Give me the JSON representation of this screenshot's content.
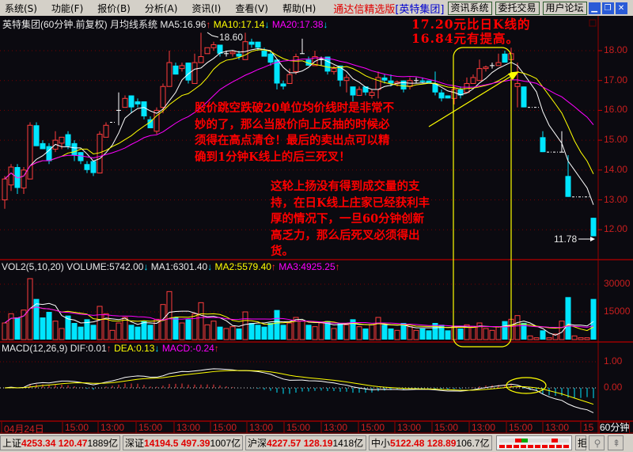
{
  "menu": {
    "items": [
      "系统(S)",
      "功能(F)",
      "报价(B)",
      "分析(A)",
      "资讯(I)",
      "查看(V)",
      "帮助(H)"
    ],
    "brand": "通达信精选版",
    "stock": "[英特集团]",
    "buttons": [
      "资讯系统",
      "委托交易",
      "用户论坛"
    ],
    "window_controls": [
      "minimize-icon",
      "restore-icon",
      "close-icon"
    ]
  },
  "header": {
    "title": "英特集团(60分钟.前复权) 月均线系统",
    "ma5": "MA5:16.96",
    "ma10": "MA10:17.14",
    "ma20": "MA20:17.38"
  },
  "vol_header": {
    "name": "VOL2(5,10,20)",
    "volume": "VOLUME:5742.00",
    "ma1": "MA1:6301.40",
    "ma2": "MA2:5579.40",
    "ma3": "MA3:4925.25"
  },
  "macd_header": {
    "name": "MACD(12,26,9)",
    "dif": "DIF:0.01",
    "dea": "DEA:0.13",
    "macd": "MACD:-0.24"
  },
  "annotations": {
    "top_right": [
      "17.20元比日K线的",
      "16.84元有提高。"
    ],
    "note1": [
      "股价跳空跌破20单位均价线时是非常不",
      "妙的了，那么当股价向上反抽的时候必",
      "须得在高点清仓！最后的卖出点可以精",
      "确到1分钟K线上的后三死叉！"
    ],
    "note2": [
      "这轮上扬没有得到成交量的支",
      "持，在日K线上庄家已经获利丰",
      "厚的情况下，一旦60分钟创新",
      "高乏力，那么后死叉必须得出",
      "货。"
    ],
    "high_label": "18.60",
    "low_label": "11.78"
  },
  "axis": {
    "price_ticks": [
      "18.00",
      "17.00",
      "16.00",
      "15.00",
      "14.00",
      "13.00",
      "12.00"
    ],
    "vol_ticks": [
      "30000",
      "15000"
    ],
    "macd_ticks": [
      "1.00",
      "0.00"
    ],
    "period": "60分钟",
    "x_labels": [
      "04月24日",
      "15:00",
      "13:00",
      "15:00",
      "13:00",
      "15:00",
      "13:00",
      "15:00",
      "13:00",
      "15:00",
      "13:00",
      "15:00",
      "13:00",
      "15:00",
      "13:00",
      "15"
    ]
  },
  "status": {
    "markets": [
      {
        "name": "上证",
        "index": "4253.34",
        "change": "120.47",
        "amount": "1889亿"
      },
      {
        "name": "深证",
        "index": "14194.5",
        "change": "497.39",
        "amount": "1007亿"
      },
      {
        "name": "沪深",
        "index": "4227.57",
        "change": "128.19",
        "amount": "1418亿"
      },
      {
        "name": "中小",
        "index": "5122.48",
        "change": "128.89",
        "amount": "106.7亿"
      }
    ],
    "reject": "拒"
  },
  "colors": {
    "up": "#ff3c3c",
    "down": "#00e5ff",
    "ma5": "#ffffff",
    "ma10": "#ffff00",
    "ma20": "#ff00ff",
    "grid": "#7a0000",
    "annotation": "#ff0000",
    "highlight": "#ffff00"
  },
  "chart_data": {
    "type": "candlestick",
    "period": "60分钟",
    "price_ylim": [
      11.5,
      18.9
    ],
    "candles_ohlc": [
      [
        13.0,
        13.8,
        12.7,
        13.7
      ],
      [
        13.5,
        14.2,
        13.3,
        14.1
      ],
      [
        14.1,
        14.2,
        13.2,
        13.4
      ],
      [
        13.4,
        14.1,
        13.2,
        14.0
      ],
      [
        13.7,
        15.6,
        13.7,
        15.5
      ],
      [
        15.5,
        15.6,
        14.8,
        14.8
      ],
      [
        14.9,
        15.0,
        14.7,
        14.7
      ],
      [
        14.8,
        14.9,
        14.2,
        14.3
      ],
      [
        14.7,
        15.3,
        14.6,
        15.0
      ],
      [
        14.9,
        15.1,
        14.7,
        15.1
      ],
      [
        15.2,
        15.3,
        14.7,
        14.8
      ],
      [
        14.9,
        15.0,
        14.3,
        14.5
      ],
      [
        14.6,
        14.6,
        14.2,
        14.3
      ],
      [
        14.2,
        14.3,
        13.9,
        14.0
      ],
      [
        14.3,
        14.3,
        13.8,
        13.9
      ],
      [
        13.9,
        15.3,
        13.9,
        15.2
      ],
      [
        15.1,
        15.6,
        15.1,
        15.5
      ],
      [
        15.6,
        15.6,
        15.6,
        15.6
      ],
      [
        16.0,
        16.6,
        15.5,
        16.0
      ],
      [
        16.1,
        16.5,
        16.1,
        16.4
      ],
      [
        16.5,
        16.5,
        15.9,
        16.1
      ],
      [
        16.3,
        16.4,
        16.1,
        16.2
      ],
      [
        16.3,
        16.3,
        15.7,
        15.8
      ],
      [
        15.7,
        15.8,
        15.4,
        15.4
      ],
      [
        15.3,
        16.1,
        15.2,
        16.0
      ],
      [
        16.1,
        16.9,
        15.9,
        16.8
      ],
      [
        16.8,
        18.0,
        16.8,
        17.6
      ],
      [
        17.5,
        17.6,
        17.2,
        17.2
      ],
      [
        17.4,
        17.6,
        17.3,
        17.5
      ],
      [
        17.6,
        17.6,
        16.9,
        17.0
      ],
      [
        16.9,
        17.9,
        16.9,
        17.6
      ],
      [
        17.6,
        18.6,
        17.6,
        17.8
      ],
      [
        17.9,
        18.1,
        17.9,
        18.1
      ],
      [
        18.1,
        18.3,
        18.0,
        18.2
      ],
      [
        18.2,
        18.2,
        17.8,
        17.9
      ],
      [
        17.9,
        18.0,
        17.8,
        17.9
      ],
      [
        17.9,
        18.0,
        17.8,
        17.95
      ],
      [
        17.9,
        18.0,
        17.7,
        17.8
      ],
      [
        17.7,
        18.6,
        17.7,
        18.3
      ],
      [
        18.3,
        18.4,
        18.1,
        18.2
      ],
      [
        18.3,
        18.3,
        18.0,
        18.1
      ],
      [
        18.0,
        18.1,
        17.8,
        17.8
      ],
      [
        17.9,
        18.0,
        17.5,
        17.6
      ],
      [
        17.7,
        17.7,
        16.7,
        16.9
      ],
      [
        16.9,
        17.0,
        16.7,
        16.8
      ],
      [
        16.9,
        17.4,
        16.9,
        17.2
      ],
      [
        17.3,
        17.9,
        17.2,
        17.8
      ],
      [
        17.9,
        18.4,
        17.9,
        17.9
      ],
      [
        17.7,
        17.8,
        17.5,
        17.5
      ],
      [
        17.5,
        18.0,
        17.5,
        17.8
      ],
      [
        17.7,
        17.8,
        17.5,
        17.7
      ],
      [
        17.8,
        17.8,
        17.2,
        17.3
      ],
      [
        17.3,
        17.5,
        17.2,
        17.4
      ],
      [
        17.5,
        17.5,
        16.8,
        17.0
      ],
      [
        17.0,
        17.2,
        16.6,
        17.1
      ],
      [
        16.8,
        16.8,
        16.3,
        16.5
      ],
      [
        16.5,
        16.8,
        16.5,
        16.7
      ],
      [
        16.8,
        16.8,
        16.5,
        16.6
      ],
      [
        16.5,
        16.7,
        16.4,
        16.6
      ],
      [
        16.7,
        17.3,
        16.4,
        17.1
      ],
      [
        17.1,
        17.2,
        16.9,
        17.0
      ],
      [
        17.0,
        17.2,
        16.8,
        16.9
      ],
      [
        16.9,
        17.0,
        16.8,
        16.95
      ],
      [
        17.0,
        17.0,
        16.6,
        16.7
      ],
      [
        16.8,
        17.1,
        16.7,
        17.0
      ],
      [
        17.0,
        17.1,
        16.9,
        17.0
      ],
      [
        17.0,
        17.1,
        16.9,
        16.95
      ],
      [
        17.0,
        17.0,
        16.9,
        16.9
      ],
      [
        16.9,
        17.3,
        16.5,
        16.6
      ],
      [
        16.6,
        16.7,
        16.3,
        16.4
      ],
      [
        16.5,
        16.5,
        16.4,
        16.4
      ],
      [
        16.4,
        16.8,
        16.2,
        16.7
      ],
      [
        16.7,
        16.8,
        16.4,
        16.5
      ],
      [
        16.6,
        17.1,
        16.6,
        16.9
      ],
      [
        16.9,
        17.2,
        16.9,
        17.1
      ],
      [
        17.0,
        17.7,
        17.0,
        17.4
      ],
      [
        17.4,
        17.5,
        17.3,
        17.45
      ],
      [
        17.5,
        17.6,
        17.4,
        17.5
      ],
      [
        17.5,
        17.9,
        17.5,
        17.6
      ],
      [
        17.9,
        18.0,
        17.6,
        17.6
      ],
      [
        17.7,
        18.1,
        17.7,
        17.9
      ],
      [
        16.8,
        17.6,
        16.1,
        16.9
      ],
      [
        16.8,
        16.8,
        16.1,
        16.1
      ],
      [
        16.1,
        16.1,
        16.1,
        16.1
      ],
      [
        16.1,
        16.1,
        16.1,
        16.1
      ],
      [
        15.1,
        15.3,
        14.6,
        14.6
      ],
      [
        14.6,
        14.6,
        14.6,
        14.6
      ],
      [
        14.6,
        14.6,
        14.6,
        14.6
      ],
      [
        14.6,
        15.3,
        14.6,
        14.6
      ],
      [
        13.8,
        14.5,
        13.1,
        13.1
      ],
      [
        13.1,
        13.1,
        13.1,
        13.1
      ],
      [
        13.1,
        13.1,
        13.1,
        13.1
      ],
      [
        13.1,
        13.1,
        13.1,
        13.1
      ],
      [
        12.4,
        12.4,
        11.78,
        11.78
      ]
    ],
    "volumes": [
      9000,
      14000,
      12000,
      16000,
      33000,
      22000,
      12000,
      15000,
      10000,
      6000,
      13000,
      9000,
      7000,
      11000,
      8000,
      18000,
      14000,
      5000,
      9000,
      12000,
      8000,
      7000,
      10000,
      8000,
      11000,
      19000,
      26000,
      12000,
      9000,
      11000,
      14000,
      20000,
      8000,
      10000,
      7000,
      6000,
      7000,
      6000,
      15000,
      9000,
      8000,
      7000,
      9000,
      16000,
      8000,
      9000,
      12000,
      10000,
      8000,
      7000,
      9000,
      10000,
      6000,
      9000,
      8000,
      11000,
      7000,
      6000,
      8000,
      12000,
      8000,
      6000,
      5000,
      9000,
      7000,
      5000,
      6000,
      5000,
      9000,
      8000,
      5000,
      7000,
      6000,
      8000,
      7000,
      9000,
      6000,
      5000,
      7000,
      10000,
      11000,
      13000,
      9000,
      2000,
      1000,
      5000,
      1000,
      3000,
      10000,
      23000,
      2000,
      1000,
      1000,
      22000
    ],
    "ma_periods": [
      5,
      10,
      20
    ],
    "macd_params": [
      12,
      26,
      9
    ]
  }
}
